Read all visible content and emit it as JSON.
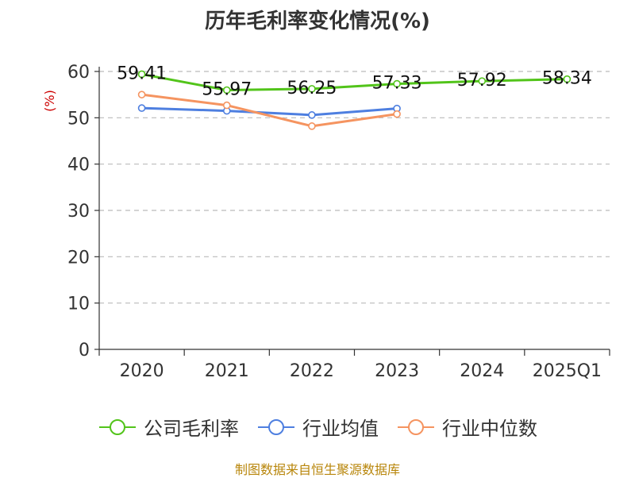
{
  "chart_data": {
    "type": "line",
    "title": "历年毛利率变化情况(%)",
    "ylabel": "(%)",
    "xlabel": "",
    "categories": [
      "2020",
      "2021",
      "2022",
      "2023",
      "2024",
      "2025Q1"
    ],
    "ylim": [
      0,
      60
    ],
    "yticks": [
      0,
      10,
      20,
      30,
      40,
      50,
      60
    ],
    "grid": true,
    "legend_position": "bottom",
    "series": [
      {
        "name": "公司毛利率",
        "color": "#52c41a",
        "values": [
          59.41,
          55.97,
          56.25,
          57.33,
          57.92,
          58.34
        ],
        "labels": [
          "59.41",
          "55.97",
          "56.25",
          "57.33",
          "57.92",
          "58.34"
        ]
      },
      {
        "name": "行业均值",
        "color": "#4e7fe0",
        "values": [
          52.1,
          51.5,
          50.6,
          52.0,
          null,
          null
        ]
      },
      {
        "name": "行业中位数",
        "color": "#f59460",
        "values": [
          55.0,
          52.7,
          48.2,
          50.8,
          null,
          null
        ]
      }
    ]
  },
  "source_text": "制图数据来自恒生聚源数据库"
}
